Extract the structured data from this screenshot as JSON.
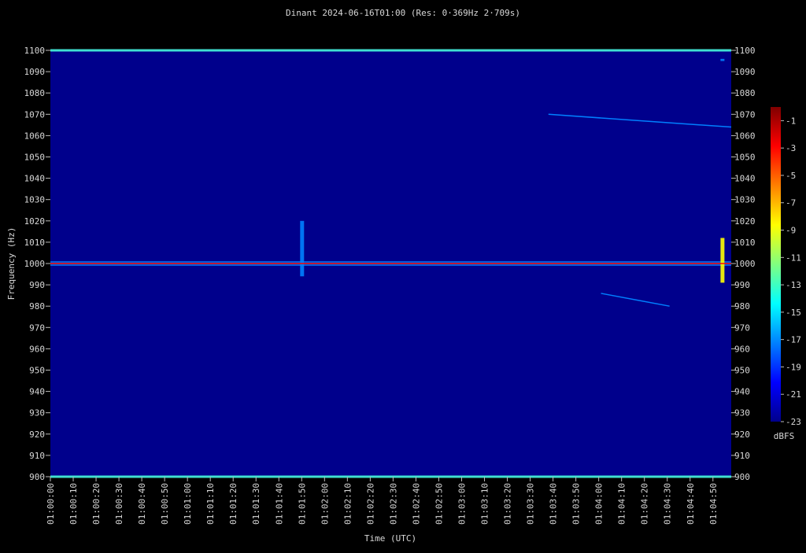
{
  "chart_data": {
    "type": "heatmap",
    "title": "Dinant 2024-06-16T01:00 (Res: 0·369Hz 2·709s)",
    "xlabel": "Time (UTC)",
    "ylabel": "Frequency (Hz)",
    "x_ticks": [
      "01:00:00",
      "01:00:10",
      "01:00:20",
      "01:00:30",
      "01:00:40",
      "01:00:50",
      "01:01:00",
      "01:01:10",
      "01:01:20",
      "01:01:30",
      "01:01:40",
      "01:01:50",
      "01:02:00",
      "01:02:10",
      "01:02:20",
      "01:02:30",
      "01:02:40",
      "01:02:50",
      "01:03:00",
      "01:03:10",
      "01:03:20",
      "01:03:30",
      "01:03:40",
      "01:03:50",
      "01:04:00",
      "01:04:10",
      "01:04:20",
      "01:04:30",
      "01:04:40",
      "01:04:50"
    ],
    "y_ticks": [
      900,
      910,
      920,
      930,
      940,
      950,
      960,
      970,
      980,
      990,
      1000,
      1010,
      1020,
      1030,
      1040,
      1050,
      1060,
      1070,
      1080,
      1090,
      1100
    ],
    "ylim": [
      900,
      1100
    ],
    "colorbar": {
      "label": "dBFS",
      "range": [
        -23,
        0
      ],
      "ticks": [
        -1,
        -3,
        -5,
        -7,
        -9,
        -11,
        -13,
        -15,
        -17,
        -19,
        -21,
        -23
      ],
      "colormap": [
        "#00008c",
        "#0000ff",
        "#0080ff",
        "#00ffff",
        "#80ff80",
        "#ffff00",
        "#ff8000",
        "#ff0000",
        "#800000"
      ]
    },
    "background_level_dbfs": -22,
    "carrier": {
      "frequency_hz": 1000,
      "color": "#ff0000"
    },
    "features": [
      {
        "name": "carrier-band",
        "t_start_s": 0,
        "t_end_s": 298,
        "f_hz": 1000,
        "dbfs": -16
      },
      {
        "name": "drift-trace-upper",
        "t_start_s": 218,
        "t_end_s": 298,
        "f_start_hz": 1070,
        "f_end_hz": 1064,
        "dbfs": -18
      },
      {
        "name": "drift-trace-lower",
        "t_start_s": 241,
        "t_end_s": 271,
        "f_start_hz": 986,
        "f_end_hz": 980,
        "dbfs": -18
      },
      {
        "name": "burst-0150",
        "t_s": 110,
        "f_start_hz": 994,
        "f_end_hz": 1020,
        "dbfs": -16
      },
      {
        "name": "burst-end",
        "t_s": 294,
        "f_start_hz": 991,
        "f_end_hz": 1012,
        "dbfs": -9
      },
      {
        "name": "blip-1095",
        "t_s": 294,
        "f_start_hz": 1095,
        "f_end_hz": 1096,
        "dbfs": -18
      }
    ]
  }
}
